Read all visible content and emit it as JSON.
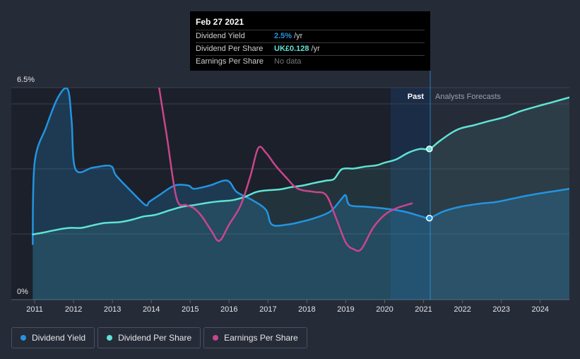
{
  "chart_data": {
    "type": "line",
    "x_ticks": [
      "2011",
      "2012",
      "2013",
      "2014",
      "2015",
      "2016",
      "2017",
      "2018",
      "2019",
      "2020",
      "2021",
      "2022",
      "2023",
      "2024"
    ],
    "x_range": [
      2010.4,
      2024.75
    ],
    "y_range": [
      0,
      6.5
    ],
    "y_tick_labels": {
      "top": "6.5%",
      "bottom": "0%"
    },
    "regions": {
      "past_label": "Past",
      "forecast_label": "Analysts Forecasts",
      "divider_x": 2021.15
    },
    "series": [
      {
        "name": "Dividend Yield",
        "color": "#2394df",
        "filled": true,
        "x": [
          2010.95,
          2011.0,
          2011.3,
          2011.6,
          2011.85,
          2011.95,
          2012.05,
          2012.5,
          2012.95,
          2013.1,
          2013.5,
          2013.85,
          2013.95,
          2014.2,
          2014.6,
          2014.95,
          2015.1,
          2015.5,
          2015.95,
          2016.2,
          2016.6,
          2016.95,
          2017.1,
          2017.5,
          2017.9,
          2018.2,
          2018.6,
          2018.9,
          2019.0,
          2019.1,
          2019.5,
          2019.95,
          2020.5,
          2020.95,
          2021.15,
          2021.5,
          2021.95,
          2022.5,
          2022.9,
          2023.5,
          2023.95,
          2024.5,
          2024.75
        ],
        "y": [
          1.7,
          4.2,
          5.3,
          6.2,
          6.45,
          5.5,
          4.0,
          4.05,
          4.1,
          3.8,
          3.3,
          2.9,
          3.0,
          3.2,
          3.5,
          3.5,
          3.4,
          3.5,
          3.65,
          3.3,
          3.05,
          2.75,
          2.3,
          2.3,
          2.4,
          2.5,
          2.7,
          3.1,
          3.2,
          2.9,
          2.85,
          2.8,
          2.7,
          2.55,
          2.5,
          2.7,
          2.85,
          2.95,
          3.0,
          3.15,
          3.25,
          3.35,
          3.4
        ]
      },
      {
        "name": "Dividend Per Share",
        "color": "#5fe3d4",
        "filled": true,
        "x": [
          2010.95,
          2011.2,
          2011.6,
          2011.9,
          2012.2,
          2012.5,
          2012.8,
          2013.2,
          2013.5,
          2013.8,
          2014.1,
          2014.5,
          2014.8,
          2015.1,
          2015.5,
          2015.8,
          2016.1,
          2016.4,
          2016.7,
          2016.95,
          2017.3,
          2017.6,
          2017.9,
          2018.2,
          2018.5,
          2018.7,
          2018.9,
          2019.2,
          2019.5,
          2019.8,
          2020.0,
          2020.3,
          2020.6,
          2020.9,
          2021.15,
          2021.4,
          2021.7,
          2021.95,
          2022.3,
          2022.7,
          2023.1,
          2023.5,
          2023.9,
          2024.3,
          2024.75
        ],
        "y": [
          2.0,
          2.05,
          2.15,
          2.2,
          2.2,
          2.28,
          2.35,
          2.38,
          2.45,
          2.55,
          2.6,
          2.75,
          2.85,
          2.9,
          2.98,
          3.02,
          3.05,
          3.15,
          3.3,
          3.35,
          3.38,
          3.45,
          3.5,
          3.58,
          3.65,
          3.7,
          4.0,
          4.02,
          4.08,
          4.12,
          4.2,
          4.3,
          4.5,
          4.62,
          4.62,
          4.85,
          5.1,
          5.25,
          5.35,
          5.48,
          5.6,
          5.78,
          5.92,
          6.05,
          6.2
        ]
      },
      {
        "name": "Earnings Per Share",
        "color": "#c9458c",
        "filled": false,
        "x": [
          2014.2,
          2014.4,
          2014.65,
          2014.9,
          2015.1,
          2015.3,
          2015.55,
          2015.75,
          2016.0,
          2016.3,
          2016.55,
          2016.75,
          2016.95,
          2017.2,
          2017.5,
          2017.7,
          2017.9,
          2018.2,
          2018.5,
          2018.75,
          2019.0,
          2019.2,
          2019.4,
          2019.7,
          2020.0,
          2020.3,
          2020.7
        ],
        "y": [
          6.5,
          5.0,
          3.1,
          2.9,
          2.8,
          2.55,
          2.1,
          1.8,
          2.3,
          2.9,
          3.8,
          4.65,
          4.5,
          4.1,
          3.7,
          3.45,
          3.35,
          3.3,
          3.2,
          2.5,
          1.75,
          1.55,
          1.55,
          2.2,
          2.6,
          2.8,
          2.95
        ]
      }
    ],
    "markers": [
      {
        "series": "Dividend Per Share",
        "x": 2021.15,
        "y": 4.62
      },
      {
        "series": "Dividend Yield",
        "x": 2021.15,
        "y": 2.5
      }
    ]
  },
  "tooltip": {
    "date": "Feb 27 2021",
    "rows": [
      {
        "name": "Dividend Yield",
        "value": "2.5%",
        "unit": "/yr"
      },
      {
        "name": "Dividend Per Share",
        "value": "UK£0.128",
        "unit": "/yr"
      },
      {
        "name": "Earnings Per Share",
        "nodata": "No data"
      }
    ]
  },
  "legend": [
    {
      "label": "Dividend Yield",
      "color": "#2394df"
    },
    {
      "label": "Dividend Per Share",
      "color": "#5fe3d4"
    },
    {
      "label": "Earnings Per Share",
      "color": "#c9458c"
    }
  ]
}
